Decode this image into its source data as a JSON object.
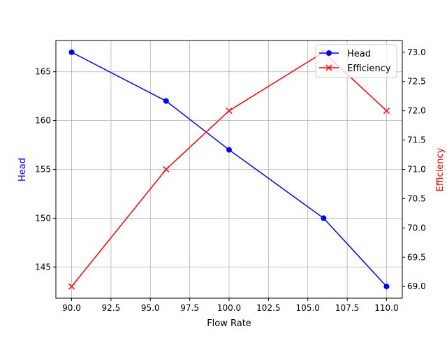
{
  "chart_data": {
    "type": "line",
    "title": "",
    "xlabel": "Flow Rate",
    "ylabel": "Head",
    "ylabel_right": "Efficiency",
    "x": [
      90,
      96,
      100,
      106,
      110
    ],
    "series": [
      {
        "name": "Head",
        "axis": "left",
        "color": "#0000ff",
        "marker": "o",
        "values": [
          167,
          162,
          157,
          150,
          143
        ]
      },
      {
        "name": "Efficiency",
        "axis": "right",
        "color": "#ff0000",
        "marker": "x",
        "values": [
          69,
          71,
          72,
          73,
          72
        ]
      }
    ],
    "xticks": [
      "90.0",
      "92.5",
      "95.0",
      "97.5",
      "100.0",
      "102.5",
      "105.0",
      "107.5",
      "110.0"
    ],
    "yticks_left": [
      "145",
      "150",
      "155",
      "160",
      "165"
    ],
    "yticks_right": [
      "69.0",
      "69.5",
      "70.0",
      "70.5",
      "71.0",
      "71.5",
      "72.0",
      "72.5",
      "73.0"
    ],
    "xlim": [
      89,
      111
    ],
    "ylim_left": [
      141.8,
      168.2
    ],
    "ylim_right": [
      68.8,
      73.2
    ],
    "grid": true,
    "legend_position": "upper right"
  }
}
